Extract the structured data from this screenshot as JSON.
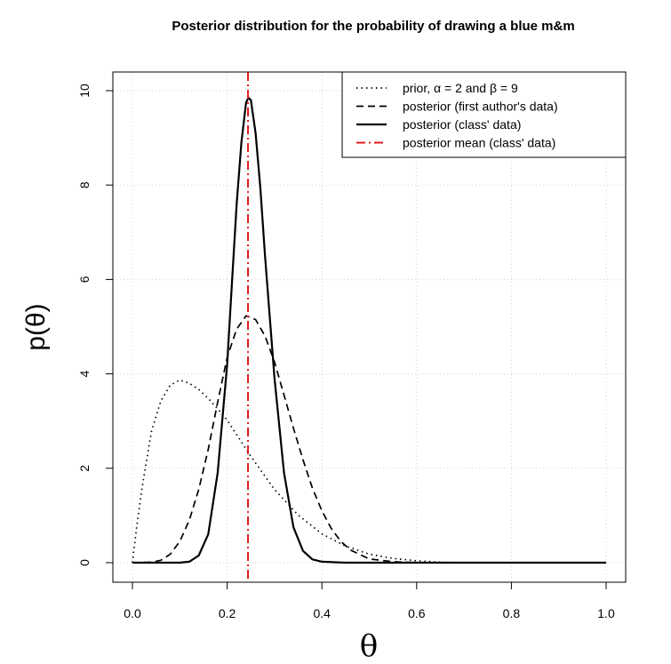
{
  "chart_data": {
    "type": "line",
    "title": "Posterior distribution for the probability of drawing a blue m&m",
    "xlabel": "θ",
    "ylabel": "p(θ)",
    "xlim": [
      0,
      1
    ],
    "ylim": [
      0,
      10
    ],
    "x_ticks": [
      0.0,
      0.2,
      0.4,
      0.6,
      0.8,
      1.0
    ],
    "x_tick_labels": [
      "0.0",
      "0.2",
      "0.4",
      "0.6",
      "0.8",
      "1.0"
    ],
    "y_ticks": [
      0,
      2,
      4,
      6,
      8,
      10
    ],
    "y_tick_labels": [
      "0",
      "2",
      "4",
      "6",
      "8",
      "10"
    ],
    "grid": true,
    "legend_position": "top-right",
    "series": [
      {
        "name": "prior,  α = 2 and β = 9",
        "style": "dotted",
        "color": "#000000",
        "x": [
          0.0,
          0.01,
          0.02,
          0.04,
          0.06,
          0.08,
          0.1,
          0.12,
          0.14,
          0.16,
          0.18,
          0.2,
          0.25,
          0.3,
          0.35,
          0.4,
          0.45,
          0.5,
          0.55,
          0.6,
          0.65,
          0.7,
          0.8,
          0.9,
          1.0
        ],
        "y": [
          0.0,
          0.83,
          1.57,
          2.77,
          3.43,
          3.76,
          3.87,
          3.8,
          3.67,
          3.48,
          3.26,
          3.02,
          2.25,
          1.55,
          1.01,
          0.61,
          0.35,
          0.18,
          0.09,
          0.04,
          0.01,
          0.0,
          0.0,
          0.0,
          0.0
        ]
      },
      {
        "name": "posterior (first author's data)",
        "style": "dashed",
        "color": "#000000",
        "x": [
          0.0,
          0.04,
          0.06,
          0.08,
          0.1,
          0.12,
          0.14,
          0.16,
          0.18,
          0.2,
          0.22,
          0.24,
          0.26,
          0.28,
          0.3,
          0.32,
          0.34,
          0.36,
          0.38,
          0.4,
          0.42,
          0.44,
          0.46,
          0.5,
          0.55,
          0.6,
          0.7,
          0.8,
          1.0
        ],
        "y": [
          0.0,
          0.01,
          0.05,
          0.18,
          0.45,
          0.9,
          1.55,
          2.4,
          3.4,
          4.35,
          4.95,
          5.23,
          5.15,
          4.8,
          4.25,
          3.55,
          2.85,
          2.18,
          1.58,
          1.1,
          0.72,
          0.45,
          0.27,
          0.08,
          0.02,
          0.0,
          0.0,
          0.0,
          0.0
        ]
      },
      {
        "name": "posterior (class' data)",
        "style": "solid",
        "color": "#000000",
        "x": [
          0.0,
          0.1,
          0.12,
          0.14,
          0.16,
          0.18,
          0.2,
          0.21,
          0.22,
          0.23,
          0.24,
          0.245,
          0.25,
          0.26,
          0.27,
          0.28,
          0.3,
          0.32,
          0.34,
          0.36,
          0.38,
          0.4,
          0.45,
          0.5,
          1.0
        ],
        "y": [
          0.0,
          0.0,
          0.02,
          0.15,
          0.6,
          1.9,
          4.2,
          5.9,
          7.6,
          8.9,
          9.75,
          9.85,
          9.8,
          9.1,
          7.95,
          6.5,
          3.9,
          1.9,
          0.75,
          0.25,
          0.07,
          0.02,
          0.0,
          0.0,
          0.0
        ]
      }
    ],
    "vertical_lines": [
      {
        "name": "posterior mean (class' data)",
        "style": "dotdash",
        "color": "#e31a1c",
        "x": 0.244
      }
    ]
  }
}
